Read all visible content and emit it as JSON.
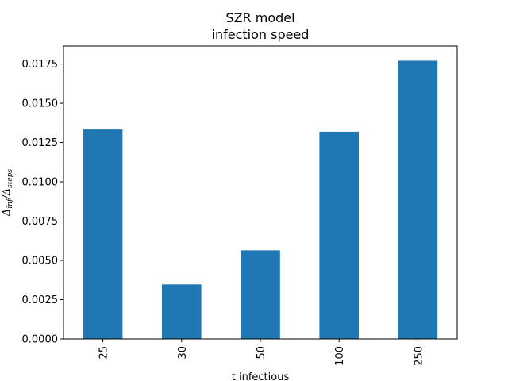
{
  "chart_data": {
    "type": "bar",
    "title": "SZR model",
    "subtitle": "infection speed",
    "xlabel": "t infectious",
    "ylabel": {
      "symbol": "Δ",
      "numerator_sub": "inf",
      "separator": "/",
      "denominator_sub": "steps"
    },
    "categories": [
      "25",
      "30",
      "50",
      "100",
      "250"
    ],
    "values": [
      0.01333,
      0.00347,
      0.00564,
      0.01319,
      0.01771
    ],
    "ylim": [
      0,
      0.01864
    ],
    "yticks": [
      "0.0000",
      "0.0025",
      "0.0050",
      "0.0075",
      "0.0100",
      "0.0125",
      "0.0150",
      "0.0175"
    ],
    "ytick_values": [
      0,
      0.0025,
      0.005,
      0.0075,
      0.01,
      0.0125,
      0.015,
      0.0175
    ],
    "bar_color": "#1f77b4",
    "grid": false,
    "legend": "none"
  }
}
